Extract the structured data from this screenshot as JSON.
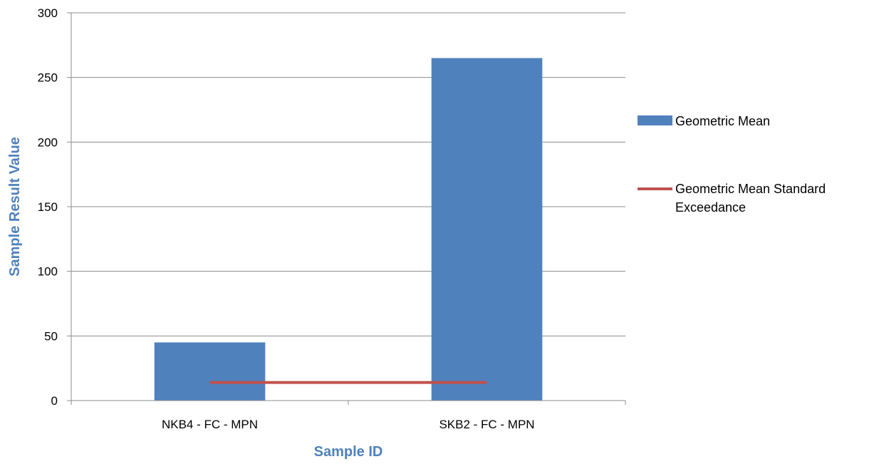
{
  "chart_data": {
    "type": "bar",
    "categories": [
      "NKB4 - FC - MPN",
      "SKB2 - FC - MPN"
    ],
    "series": [
      {
        "name": "Geometric Mean",
        "kind": "bar",
        "color": "#4F81BD",
        "values": [
          45,
          265
        ]
      },
      {
        "name": "Geometric Mean Standard Exceedance",
        "kind": "line",
        "color": "#C0504D",
        "values": [
          14,
          14
        ]
      }
    ],
    "xlabel": "Sample ID",
    "ylabel": "Sample Result Value",
    "axis_title_color": "#4F81BD",
    "ylim": [
      0,
      300
    ],
    "yticks": [
      0,
      50,
      100,
      150,
      200,
      250,
      300
    ],
    "grid": true,
    "legend_position": "right",
    "legend_lines": [
      [
        "Geometric Mean"
      ],
      [
        "Geometric Mean Standard",
        "Exceedance"
      ]
    ]
  }
}
